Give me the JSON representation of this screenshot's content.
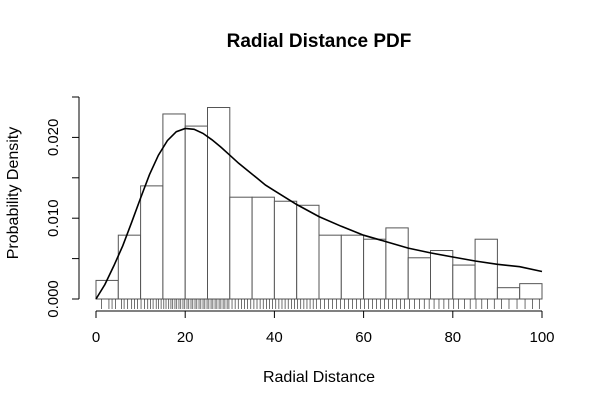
{
  "chart_data": {
    "type": "bar",
    "title": "Radial Distance PDF",
    "xlabel": "Radial Distance",
    "ylabel": "Probability Density",
    "xlim": [
      0,
      100
    ],
    "ylim": [
      0,
      0.025
    ],
    "x_ticks": [
      0,
      20,
      40,
      60,
      80,
      100
    ],
    "y_ticks": [
      0.0,
      0.005,
      0.01,
      0.015,
      0.02,
      0.025
    ],
    "y_tick_labels": [
      {
        "value": 0.0,
        "label": "0.000"
      },
      {
        "value": 0.01,
        "label": "0.010"
      },
      {
        "value": 0.02,
        "label": "0.020"
      }
    ],
    "grid": false,
    "histogram": {
      "bin_edges": [
        0,
        5,
        10,
        15,
        20,
        25,
        30,
        35,
        40,
        45,
        50,
        55,
        60,
        65,
        70,
        75,
        80,
        85,
        90,
        95,
        100
      ],
      "densities": [
        0.0023,
        0.0079,
        0.014,
        0.0229,
        0.0214,
        0.0237,
        0.0126,
        0.0126,
        0.0121,
        0.0116,
        0.0079,
        0.0079,
        0.0074,
        0.0088,
        0.0051,
        0.006,
        0.0042,
        0.0074,
        0.0014,
        0.0019
      ]
    },
    "density_curve": {
      "x": [
        0,
        2,
        4,
        6,
        8,
        10,
        12,
        14,
        16,
        18,
        20,
        22,
        24,
        26,
        28,
        30,
        32,
        34,
        36,
        38,
        40,
        45,
        50,
        55,
        60,
        65,
        70,
        75,
        80,
        85,
        90,
        95,
        100
      ],
      "y": [
        0.0,
        0.0018,
        0.0041,
        0.0066,
        0.0095,
        0.0125,
        0.0154,
        0.0178,
        0.0196,
        0.0207,
        0.0211,
        0.021,
        0.0205,
        0.0197,
        0.0188,
        0.0178,
        0.0168,
        0.0159,
        0.015,
        0.0141,
        0.0134,
        0.0117,
        0.0102,
        0.009,
        0.0079,
        0.0071,
        0.0063,
        0.0057,
        0.0052,
        0.0047,
        0.0043,
        0.004,
        0.0034
      ]
    },
    "rug": [
      1.2,
      2.9,
      3.6,
      4.4,
      5.7,
      6.3,
      7.1,
      8.0,
      8.6,
      9.3,
      10.1,
      10.9,
      11.6,
      12.2,
      12.8,
      13.5,
      14.0,
      14.6,
      15.2,
      15.7,
      16.3,
      16.8,
      17.2,
      17.7,
      18.1,
      18.6,
      19.0,
      19.5,
      19.9,
      20.4,
      20.8,
      21.3,
      21.7,
      22.2,
      22.6,
      23.1,
      23.5,
      24.0,
      24.4,
      24.9,
      25.3,
      25.8,
      26.2,
      26.7,
      27.1,
      27.6,
      28.0,
      28.5,
      28.9,
      29.4,
      29.8,
      30.5,
      31.2,
      31.9,
      32.6,
      33.3,
      34.0,
      34.7,
      35.4,
      36.1,
      36.8,
      37.5,
      38.2,
      38.9,
      39.6,
      40.3,
      41.0,
      41.7,
      42.4,
      43.1,
      43.8,
      44.5,
      45.2,
      45.9,
      46.6,
      47.3,
      48.0,
      48.7,
      49.4,
      50.3,
      51.2,
      52.1,
      53.0,
      53.9,
      54.8,
      55.7,
      56.6,
      57.5,
      58.4,
      59.3,
      60.2,
      61.1,
      62.0,
      62.9,
      63.8,
      64.7,
      65.6,
      66.5,
      67.4,
      68.3,
      69.2,
      70.3,
      71.4,
      72.5,
      73.6,
      74.7,
      75.8,
      76.9,
      78.0,
      79.1,
      80.2,
      81.3,
      82.6,
      83.9,
      85.2,
      86.5,
      87.8,
      89.3,
      90.9,
      92.6,
      94.4,
      96.2,
      97.9,
      99.4
    ]
  }
}
